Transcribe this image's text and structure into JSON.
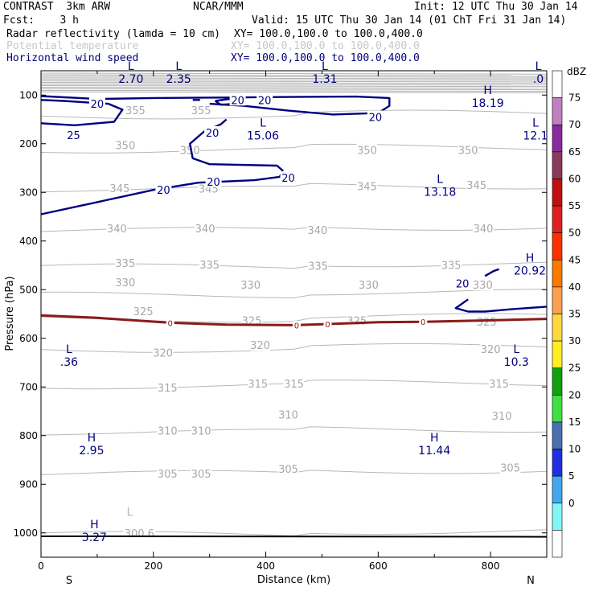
{
  "header": {
    "model": "CONTRAST  3km ARW",
    "org": "NCAR/MMM",
    "init": "Init: 12 UTC Thu 30 Jan 14",
    "fcst": "Fcst:    3 h",
    "valid": "Valid: 15 UTC Thu 30 Jan 14 (01 ChT Fri 31 Jan 14)",
    "fields": [
      {
        "name": "Radar reflectivity (lamda = 10 cm)",
        "xy": "XY= 100.0,100.0 to 100.0,400.0"
      },
      {
        "name": "Potential temperature",
        "xy": "XY= 100.0,100.0 to 100.0,400.0"
      },
      {
        "name": "Horizontal wind speed",
        "xy": "XY= 100.0,100.0 to 100.0,400.0"
      }
    ]
  },
  "chart_data": {
    "type": "cross-section contour",
    "xlabel": "Distance (km)",
    "ylabel": "Pressure (hPa)",
    "xlim": [
      0,
      900
    ],
    "ylim": [
      1050,
      50
    ],
    "x_ticks": [
      0,
      200,
      400,
      600,
      800
    ],
    "y_ticks": [
      100,
      200,
      300,
      400,
      500,
      600,
      700,
      800,
      900,
      1000
    ],
    "left_end_label": "S",
    "right_end_label": "N",
    "colorbar": {
      "title": "dBZ",
      "levels": [
        "75",
        "70",
        "65",
        "60",
        "55",
        "50",
        "45",
        "40",
        "35",
        "30",
        "25",
        "20",
        "15",
        "10",
        "5",
        "0"
      ],
      "colors": [
        "#ffffff",
        "#c080c0",
        "#8a2a9e",
        "#8a3a5a",
        "#c01010",
        "#e02020",
        "#ff3000",
        "#ff7800",
        "#ffa050",
        "#ffd840",
        "#ffee20",
        "#10a010",
        "#40e040",
        "#4a70b0",
        "#2030e0",
        "#40a8f0",
        "#80f8f8",
        "#ffffff"
      ]
    },
    "theta_levels": [
      {
        "value": "355",
        "p": 140
      },
      {
        "value": "350",
        "p": 210
      },
      {
        "value": "345",
        "p": 290
      },
      {
        "value": "340",
        "p": 375
      },
      {
        "value": "335",
        "p": 450
      },
      {
        "value": "330",
        "p": 508
      },
      {
        "value": "325",
        "p": 558
      },
      {
        "value": "320",
        "p": 620
      },
      {
        "value": "315",
        "p": 695
      },
      {
        "value": "310",
        "p": 790
      },
      {
        "value": "305",
        "p": 875
      },
      {
        "value": "300.6",
        "p": 1000
      }
    ],
    "theta_labels": [
      {
        "text": "355",
        "x": 168,
        "p": 131
      },
      {
        "text": "355",
        "x": 285,
        "p": 131
      },
      {
        "text": "350",
        "x": 150,
        "p": 203
      },
      {
        "text": "350",
        "x": 265,
        "p": 213
      },
      {
        "text": "350",
        "x": 580,
        "p": 213
      },
      {
        "text": "350",
        "x": 760,
        "p": 213
      },
      {
        "text": "345",
        "x": 140,
        "p": 291
      },
      {
        "text": "345",
        "x": 298,
        "p": 292
      },
      {
        "text": "345",
        "x": 580,
        "p": 287
      },
      {
        "text": "345",
        "x": 775,
        "p": 285
      },
      {
        "text": "340",
        "x": 135,
        "p": 374
      },
      {
        "text": "340",
        "x": 292,
        "p": 374
      },
      {
        "text": "340",
        "x": 492,
        "p": 377
      },
      {
        "text": "340",
        "x": 787,
        "p": 374
      },
      {
        "text": "335",
        "x": 150,
        "p": 445
      },
      {
        "text": "335",
        "x": 300,
        "p": 448
      },
      {
        "text": "335",
        "x": 493,
        "p": 451
      },
      {
        "text": "335",
        "x": 730,
        "p": 449
      },
      {
        "text": "330",
        "x": 150,
        "p": 485
      },
      {
        "text": "330",
        "x": 373,
        "p": 490
      },
      {
        "text": "330",
        "x": 583,
        "p": 490
      },
      {
        "text": "330",
        "x": 786,
        "p": 490
      },
      {
        "text": "325",
        "x": 182,
        "p": 544
      },
      {
        "text": "325",
        "x": 375,
        "p": 563
      },
      {
        "text": "325",
        "x": 562,
        "p": 563
      },
      {
        "text": "325",
        "x": 793,
        "p": 566
      },
      {
        "text": "320",
        "x": 390,
        "p": 614
      },
      {
        "text": "320",
        "x": 217,
        "p": 629
      },
      {
        "text": "320",
        "x": 800,
        "p": 622
      },
      {
        "text": "315",
        "x": 225,
        "p": 701
      },
      {
        "text": "315",
        "x": 386,
        "p": 693
      },
      {
        "text": "315",
        "x": 450,
        "p": 693
      },
      {
        "text": "315",
        "x": 815,
        "p": 693
      },
      {
        "text": "310",
        "x": 225,
        "p": 790
      },
      {
        "text": "310",
        "x": 285,
        "p": 790
      },
      {
        "text": "310",
        "x": 440,
        "p": 757
      },
      {
        "text": "310",
        "x": 820,
        "p": 759
      },
      {
        "text": "305",
        "x": 225,
        "p": 878
      },
      {
        "text": "305",
        "x": 285,
        "p": 878
      },
      {
        "text": "305",
        "x": 440,
        "p": 868
      },
      {
        "text": "305",
        "x": 835,
        "p": 866
      },
      {
        "text": "300.6",
        "x": 175,
        "p": 1000
      }
    ],
    "wind_labels": [
      {
        "text": "20",
        "x": 100,
        "p": 118
      },
      {
        "text": "20",
        "x": 350,
        "p": 110
      },
      {
        "text": "20",
        "x": 398,
        "p": 110
      },
      {
        "text": "20",
        "x": 595,
        "p": 145
      },
      {
        "text": "25",
        "x": 58,
        "p": 182
      },
      {
        "text": "20",
        "x": 305,
        "p": 177
      },
      {
        "text": "20",
        "x": 218,
        "p": 295
      },
      {
        "text": "20",
        "x": 307,
        "p": 278
      },
      {
        "text": "20",
        "x": 440,
        "p": 270
      },
      {
        "text": "20",
        "x": 750,
        "p": 487
      }
    ],
    "extrema": [
      {
        "type": "L",
        "value": "2.70",
        "x": 160,
        "p": 68,
        "group": "top"
      },
      {
        "type": "L",
        "value": "2.35",
        "x": 245,
        "p": 68,
        "group": "top"
      },
      {
        "type": "L",
        "value": "1.31",
        "x": 505,
        "p": 68,
        "group": "top"
      },
      {
        "type": "L",
        "value": ".0",
        "x": 885,
        "p": 68,
        "group": "top"
      },
      {
        "type": "H",
        "value": "18.19",
        "x": 795,
        "p": 118,
        "group": "wind"
      },
      {
        "type": "L",
        "value": "15.06",
        "x": 395,
        "p": 185,
        "group": "wind"
      },
      {
        "type": "L",
        "value": "12.1",
        "x": 880,
        "p": 185,
        "group": "wind"
      },
      {
        "type": "L",
        "value": "13.18",
        "x": 710,
        "p": 300,
        "group": "wind"
      },
      {
        "type": "H",
        "value": "20.92",
        "x": 870,
        "p": 462,
        "group": "wind"
      },
      {
        "type": "L",
        "value": ".36",
        "x": 50,
        "p": 650,
        "group": "wind"
      },
      {
        "type": "L",
        "value": "10.3",
        "x": 846,
        "p": 650,
        "group": "wind"
      },
      {
        "type": "H",
        "value": "2.95",
        "x": 90,
        "p": 832,
        "group": "wind"
      },
      {
        "type": "H",
        "value": "11.44",
        "x": 700,
        "p": 832,
        "group": "wind"
      },
      {
        "type": "H",
        "value": "3.27",
        "x": 95,
        "p": 1010,
        "group": "wind"
      },
      {
        "type": "L",
        "value": "",
        "x": 158,
        "p": 985,
        "group": "theta"
      }
    ],
    "freezing_level": {
      "label": "0",
      "points": [
        [
          0,
          553
        ],
        [
          100,
          558
        ],
        [
          230,
          568
        ],
        [
          330,
          572
        ],
        [
          450,
          573
        ],
        [
          500,
          571
        ],
        [
          600,
          567
        ],
        [
          680,
          566
        ],
        [
          800,
          563
        ],
        [
          900,
          560
        ]
      ],
      "label_x": [
        230,
        455,
        510,
        680
      ]
    },
    "surface": {
      "points": [
        [
          0,
          1007
        ],
        [
          900,
          1008
        ]
      ]
    }
  }
}
